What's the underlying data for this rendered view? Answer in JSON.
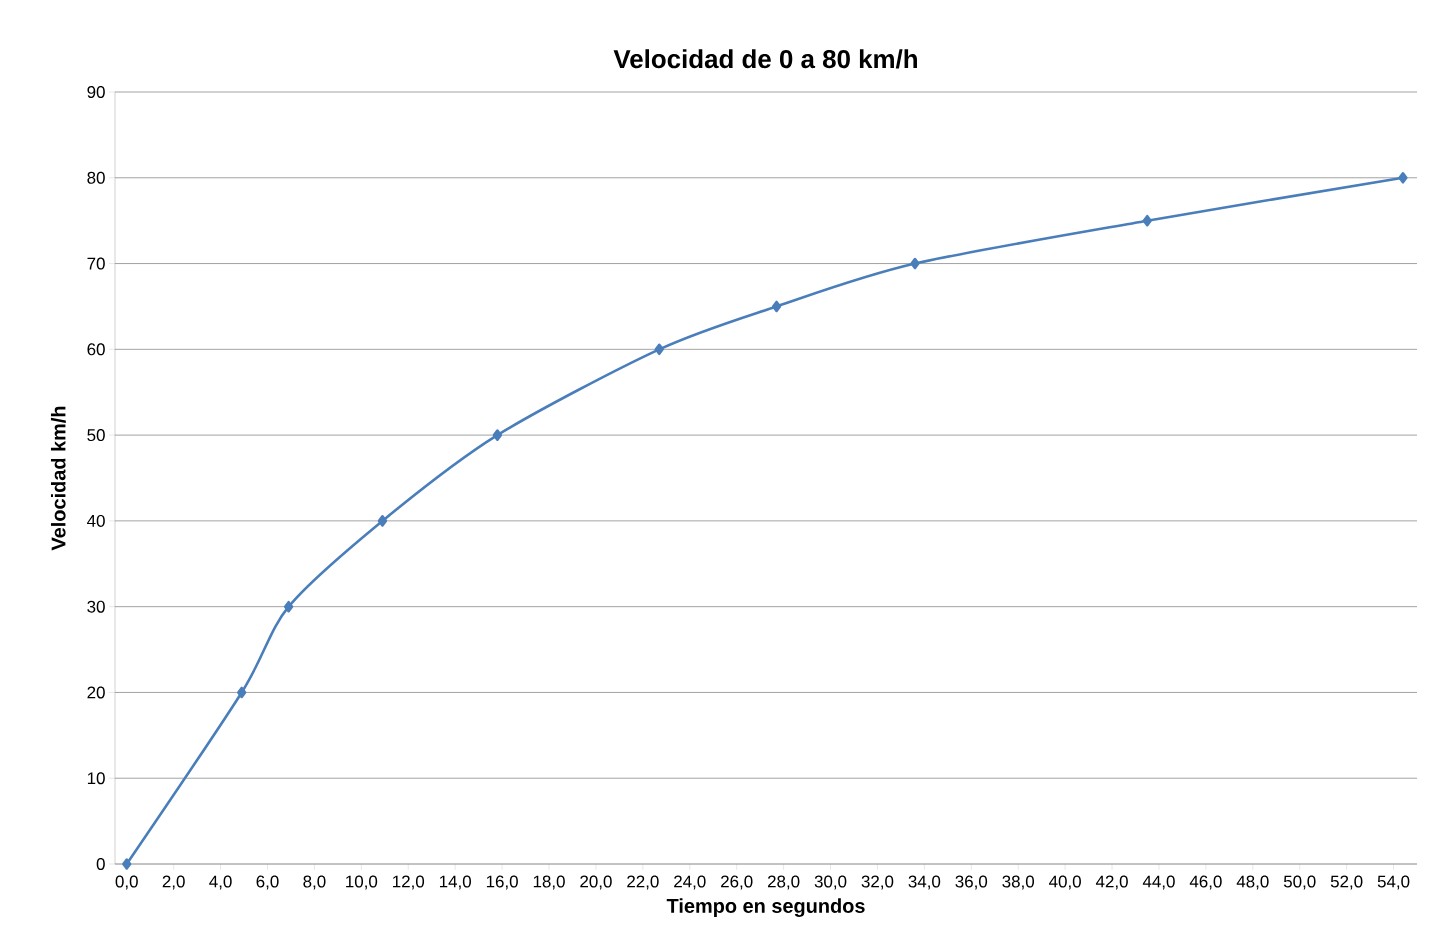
{
  "chart_data": {
    "type": "line",
    "title": "Velocidad de 0 a 80 km/h",
    "xlabel": "Tiempo en segundos",
    "ylabel": "Velocidad km/h",
    "x": [
      0,
      4.9,
      6.9,
      10.9,
      15.8,
      22.7,
      27.7,
      33.6,
      43.5,
      54.4
    ],
    "series": [
      {
        "color": "#4a7ebb",
        "values": [
          0,
          20,
          30,
          40,
          50,
          60,
          65,
          70,
          75,
          80
        ]
      }
    ],
    "xlim": [
      -0.5,
      55
    ],
    "ylim": [
      0,
      90
    ],
    "xticks": [
      {
        "value": 0,
        "label": "0,0"
      },
      {
        "value": 2,
        "label": "2,0"
      },
      {
        "value": 4,
        "label": "4,0"
      },
      {
        "value": 6,
        "label": "6,0"
      },
      {
        "value": 8,
        "label": "8,0"
      },
      {
        "value": 10,
        "label": "10,0"
      },
      {
        "value": 12,
        "label": "12,0"
      },
      {
        "value": 14,
        "label": "14,0"
      },
      {
        "value": 16,
        "label": "16,0"
      },
      {
        "value": 18,
        "label": "18,0"
      },
      {
        "value": 20,
        "label": "20,0"
      },
      {
        "value": 22,
        "label": "22,0"
      },
      {
        "value": 24,
        "label": "24,0"
      },
      {
        "value": 26,
        "label": "26,0"
      },
      {
        "value": 28,
        "label": "28,0"
      },
      {
        "value": 30,
        "label": "30,0"
      },
      {
        "value": 32,
        "label": "32,0"
      },
      {
        "value": 34,
        "label": "34,0"
      },
      {
        "value": 36,
        "label": "36,0"
      },
      {
        "value": 38,
        "label": "38,0"
      },
      {
        "value": 40,
        "label": "40,0"
      },
      {
        "value": 42,
        "label": "42,0"
      },
      {
        "value": 44,
        "label": "44,0"
      },
      {
        "value": 46,
        "label": "46,0"
      },
      {
        "value": 48,
        "label": "48,0"
      },
      {
        "value": 50,
        "label": "50,0"
      },
      {
        "value": 52,
        "label": "52,0"
      },
      {
        "value": 54,
        "label": "54,0"
      }
    ],
    "yticks": [
      0,
      10,
      20,
      30,
      40,
      50,
      60,
      70,
      80,
      90
    ],
    "grid": "y",
    "marker": "diamond",
    "line_style": "solid"
  }
}
